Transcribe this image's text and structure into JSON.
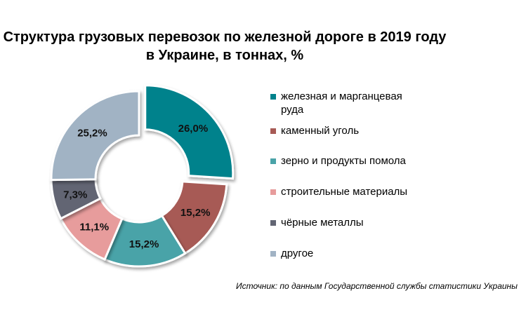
{
  "title_line1": "Структура грузовых перевозок по железной дороге в 2019 году",
  "title_line2": "в Украине, в тоннах, %",
  "source": "Источник: по данным Государственной службы статистики Украины",
  "chart_data": {
    "type": "pie",
    "donut": true,
    "title": "Структура грузовых перевозок по железной дороге в 2019 году в Украине, в тоннах, %",
    "legend_position": "right",
    "categories": [
      "железная и марганцевая руда",
      "каменный уголь",
      "зерно и продукты помола",
      "строительные материалы",
      "чёрные металлы",
      "другое"
    ],
    "values": [
      26.0,
      15.2,
      15.2,
      11.1,
      7.3,
      25.2
    ],
    "labels": [
      "26,0%",
      "15,2%",
      "15,2%",
      "11,1%",
      "7,3%",
      "25,2%"
    ],
    "colors": [
      "#00828c",
      "#a75a55",
      "#4aa3a8",
      "#e79c9c",
      "#626573",
      "#a1b3c4"
    ],
    "exploded": [
      true,
      false,
      false,
      false,
      false,
      false
    ]
  },
  "legend": [
    {
      "label_line1": "железная и марганцевая",
      "label_line2": "руда",
      "color": "#00828c"
    },
    {
      "label_line1": "каменный уголь",
      "label_line2": "",
      "color": "#a75a55"
    },
    {
      "label_line1": "зерно и продукты помола",
      "label_line2": "",
      "color": "#4aa3a8"
    },
    {
      "label_line1": "строительные материалы",
      "label_line2": "",
      "color": "#e79c9c"
    },
    {
      "label_line1": "чёрные металлы",
      "label_line2": "",
      "color": "#626573"
    },
    {
      "label_line1": "другое",
      "label_line2": "",
      "color": "#a1b3c4"
    }
  ]
}
